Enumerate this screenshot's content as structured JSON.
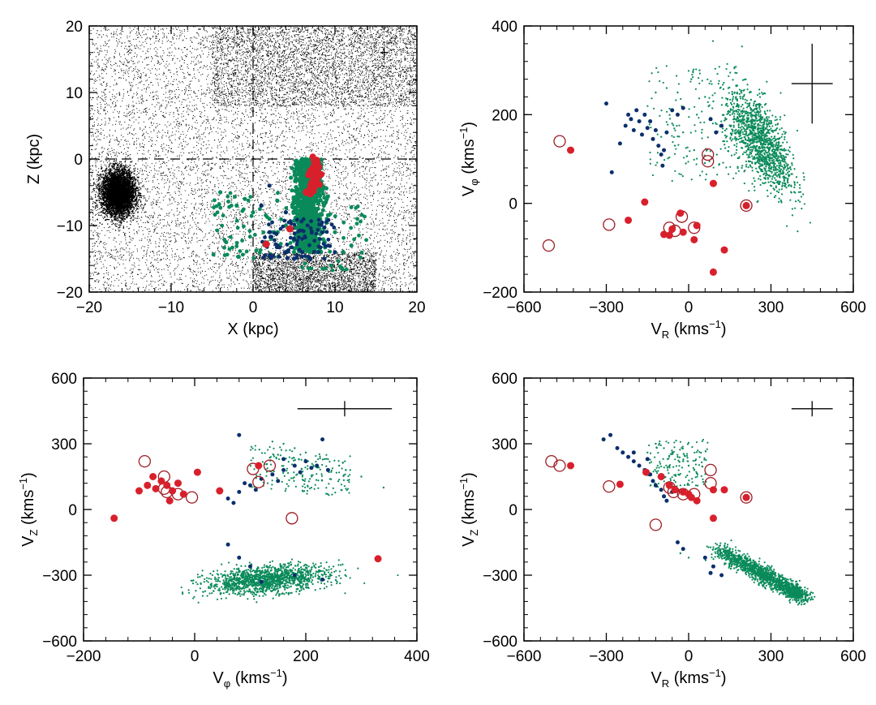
{
  "colors": {
    "background": "#000000",
    "stream_green": "#0a8a5a",
    "blue": "#0b2f6b",
    "red": "#d8202c",
    "open_circle": "#9e1b22"
  },
  "chart_data": [
    {
      "type": "scatter",
      "id": "xz",
      "xlabel": "X (kpc)",
      "ylabel": "Z (kpc)",
      "xlim": [
        -20,
        20
      ],
      "ylim": [
        -20,
        20
      ],
      "xticks": [
        "−20",
        "−10",
        "0",
        "10",
        "20"
      ],
      "yticks": [
        "−20",
        "−10",
        "0",
        "10",
        "20"
      ],
      "reference_lines": {
        "x": 0,
        "y": 0
      },
      "error_cross": {
        "x": 16,
        "y": 16,
        "dx": 0.5,
        "dy": 0.8
      },
      "series": [
        {
          "name": "background",
          "note": "dense field of black points with a compact cluster near (-16.5, -5)"
        },
        {
          "name": "green",
          "points": [
            [
              6,
              0
            ],
            [
              6.5,
              -2
            ],
            [
              7,
              -4
            ],
            [
              7.5,
              -6
            ],
            [
              7,
              -8
            ],
            [
              6.8,
              -10
            ],
            [
              6.5,
              -12
            ],
            [
              7.2,
              -13
            ],
            [
              5,
              -6
            ],
            [
              8,
              -3
            ],
            [
              -4,
              -5
            ],
            [
              -2,
              -7
            ],
            [
              0,
              -8
            ],
            [
              2,
              -9
            ],
            [
              3,
              -11
            ],
            [
              9,
              -9
            ],
            [
              10,
              -11
            ],
            [
              11,
              -14
            ],
            [
              12,
              -13
            ],
            [
              -1,
              -6
            ],
            [
              4,
              -10
            ],
            [
              8,
              -12
            ],
            [
              5,
              -14
            ],
            [
              9,
              -6
            ],
            [
              6,
              -7
            ]
          ]
        },
        {
          "name": "blue",
          "points": [
            [
              2,
              -11
            ],
            [
              3,
              -13
            ],
            [
              4,
              -14
            ],
            [
              5,
              -12
            ],
            [
              6,
              -14
            ],
            [
              8,
              -14
            ],
            [
              10,
              -14
            ],
            [
              4,
              -8
            ],
            [
              1,
              -7
            ],
            [
              2,
              -4
            ],
            [
              5,
              -15
            ],
            [
              7,
              -15
            ]
          ]
        },
        {
          "name": "red_filled",
          "points": [
            [
              7.7,
              -1
            ],
            [
              7.5,
              -2
            ],
            [
              7.2,
              -3.5
            ],
            [
              7.0,
              -4.5
            ],
            [
              6.5,
              -5
            ],
            [
              7.0,
              -5.2
            ],
            [
              4.5,
              -10.5
            ],
            [
              1.6,
              -12.8
            ],
            [
              8,
              -1.2
            ],
            [
              7.5,
              -2.5
            ]
          ]
        }
      ]
    },
    {
      "type": "scatter",
      "id": "vr_vphi",
      "xlabel": "V_R (kms^-1)",
      "ylabel": "V_φ (kms^-1)",
      "xlim": [
        -600,
        600
      ],
      "ylim": [
        -200,
        400
      ],
      "xticks": [
        "−600",
        "−300",
        "0",
        "300",
        "600"
      ],
      "yticks": [
        "−200",
        "0",
        "200",
        "400"
      ],
      "error_cross": {
        "x": 450,
        "y": 270,
        "dx": 75,
        "dy": 90
      },
      "series": [
        {
          "name": "green_cloud",
          "center": [
            260,
            140
          ],
          "note": "dense tilted cloud"
        },
        {
          "name": "blue",
          "points": [
            [
              -300,
              225
            ],
            [
              -280,
              70
            ],
            [
              -250,
              135
            ],
            [
              -230,
              175
            ],
            [
              -220,
              200
            ],
            [
              -210,
              190
            ],
            [
              -200,
              165
            ],
            [
              -190,
              210
            ],
            [
              -180,
              185
            ],
            [
              -170,
              155
            ],
            [
              -160,
              200
            ],
            [
              -150,
              170
            ],
            [
              -140,
              185
            ],
            [
              -130,
              145
            ],
            [
              -120,
              165
            ],
            [
              -110,
              130
            ],
            [
              -100,
              110
            ],
            [
              -95,
              85
            ],
            [
              -90,
              120
            ],
            [
              -80,
              160
            ],
            [
              -60,
              210
            ],
            [
              -40,
              200
            ],
            [
              -20,
              215
            ],
            [
              80,
              190
            ],
            [
              100,
              160
            ],
            [
              120,
              175
            ]
          ]
        },
        {
          "name": "green_sparse",
          "points": [
            [
              -100,
              150
            ],
            [
              -60,
              180
            ],
            [
              -20,
              160
            ],
            [
              -80,
              260
            ],
            [
              -40,
              250
            ],
            [
              10,
              280
            ],
            [
              40,
              300
            ],
            [
              20,
              120
            ],
            [
              -10,
              90
            ],
            [
              60,
              240
            ],
            [
              90,
              230
            ],
            [
              -50,
              130
            ],
            [
              -120,
              250
            ],
            [
              30,
              200
            ]
          ]
        },
        {
          "name": "red_filled",
          "points": [
            [
              -430,
              120
            ],
            [
              -160,
              3
            ],
            [
              -220,
              -38
            ],
            [
              -90,
              -70
            ],
            [
              -70,
              -72
            ],
            [
              -60,
              -58
            ],
            [
              -30,
              -22
            ],
            [
              -20,
              -65
            ],
            [
              20,
              -82
            ],
            [
              30,
              -50
            ],
            [
              90,
              45
            ],
            [
              130,
              -105
            ],
            [
              90,
              -155
            ],
            [
              210,
              -5
            ]
          ]
        },
        {
          "name": "red_open",
          "points": [
            [
              -470,
              140
            ],
            [
              -510,
              -95
            ],
            [
              -290,
              -48
            ],
            [
              -70,
              -55
            ],
            [
              -50,
              -62
            ],
            [
              -25,
              -30
            ],
            [
              20,
              -55
            ],
            [
              70,
              110
            ],
            [
              70,
              95
            ],
            [
              210,
              -5
            ]
          ]
        }
      ]
    },
    {
      "type": "scatter",
      "id": "vphi_vz",
      "xlabel": "V_φ (kms^-1)",
      "ylabel": "V_Z (kms^-1)",
      "xlim": [
        -200,
        400
      ],
      "ylim": [
        -600,
        600
      ],
      "xticks": [
        "−200",
        "0",
        "200",
        "400"
      ],
      "yticks": [
        "−600",
        "−300",
        "0",
        "300",
        "600"
      ],
      "error_cross": {
        "x": 270,
        "y": 460,
        "dx": 85,
        "dy": 35
      },
      "series": [
        {
          "name": "green_cloud",
          "center": [
            130,
            -320
          ],
          "note": "dense horizontal band"
        },
        {
          "name": "blue",
          "points": [
            [
              60,
              50
            ],
            [
              80,
              80
            ],
            [
              100,
              110
            ],
            [
              120,
              140
            ],
            [
              140,
              160
            ],
            [
              160,
              180
            ],
            [
              180,
              200
            ],
            [
              200,
              220
            ],
            [
              220,
              200
            ],
            [
              240,
              180
            ],
            [
              90,
              120
            ],
            [
              70,
              30
            ],
            [
              110,
              90
            ],
            [
              150,
              130
            ],
            [
              190,
              170
            ],
            [
              210,
              190
            ],
            [
              160,
              230
            ],
            [
              60,
              -160
            ],
            [
              80,
              -220
            ],
            [
              100,
              -260
            ],
            [
              120,
              -330
            ],
            [
              180,
              -300
            ],
            [
              230,
              -320
            ],
            [
              80,
              340
            ],
            [
              230,
              320
            ]
          ]
        },
        {
          "name": "green_sparse",
          "points": [
            [
              140,
              310
            ],
            [
              160,
              300
            ],
            [
              180,
              280
            ],
            [
              200,
              260
            ],
            [
              240,
              230
            ],
            [
              260,
              200
            ],
            [
              280,
              180
            ],
            [
              300,
              150
            ],
            [
              340,
              100
            ],
            [
              150,
              250
            ]
          ]
        },
        {
          "name": "red_filled",
          "points": [
            [
              -145,
              -40
            ],
            [
              -100,
              85
            ],
            [
              -85,
              110
            ],
            [
              -75,
              150
            ],
            [
              -70,
              95
            ],
            [
              -60,
              130
            ],
            [
              -50,
              110
            ],
            [
              -45,
              40
            ],
            [
              -40,
              85
            ],
            [
              -30,
              120
            ],
            [
              -20,
              70
            ],
            [
              5,
              170
            ],
            [
              45,
              85
            ],
            [
              115,
              200
            ],
            [
              330,
              -225
            ]
          ]
        },
        {
          "name": "red_open",
          "points": [
            [
              -90,
              220
            ],
            [
              -55,
              150
            ],
            [
              -55,
              95
            ],
            [
              -50,
              80
            ],
            [
              -30,
              70
            ],
            [
              -5,
              55
            ],
            [
              105,
              185
            ],
            [
              115,
              125
            ],
            [
              135,
              200
            ],
            [
              175,
              -40
            ]
          ]
        }
      ]
    },
    {
      "type": "scatter",
      "id": "vr_vz",
      "xlabel": "V_R (kms^-1)",
      "ylabel": "V_Z (kms^-1)",
      "xlim": [
        -600,
        600
      ],
      "ylim": [
        -600,
        600
      ],
      "xticks": [
        "−600",
        "−300",
        "0",
        "300",
        "600"
      ],
      "yticks": [
        "−600",
        "−300",
        "0",
        "300",
        "600"
      ],
      "error_cross": {
        "x": 450,
        "y": 460,
        "dx": 75,
        "dy": 35
      },
      "series": [
        {
          "name": "green_band",
          "from": [
            100,
            -180
          ],
          "to": [
            420,
            -400
          ],
          "note": "diagonal dense band"
        },
        {
          "name": "blue",
          "points": [
            [
              -310,
              320
            ],
            [
              -285,
              340
            ],
            [
              -260,
              280
            ],
            [
              -240,
              260
            ],
            [
              -220,
              240
            ],
            [
              -200,
              220
            ],
            [
              -180,
              200
            ],
            [
              -160,
              180
            ],
            [
              -140,
              160
            ],
            [
              -130,
              130
            ],
            [
              -120,
              110
            ],
            [
              -100,
              90
            ],
            [
              -90,
              60
            ],
            [
              -80,
              40
            ],
            [
              -70,
              120
            ],
            [
              -60,
              80
            ],
            [
              -150,
              230
            ],
            [
              -200,
              260
            ],
            [
              -40,
              -150
            ],
            [
              -20,
              -180
            ],
            [
              60,
              -220
            ],
            [
              90,
              -260
            ],
            [
              120,
              -300
            ],
            [
              80,
              -290
            ]
          ]
        },
        {
          "name": "green_sparse",
          "points": [
            [
              -120,
              300
            ],
            [
              -90,
              280
            ],
            [
              -60,
              260
            ],
            [
              -40,
              240
            ],
            [
              -20,
              220
            ],
            [
              0,
              200
            ],
            [
              20,
              180
            ],
            [
              -30,
              -200
            ],
            [
              0,
              -220
            ],
            [
              -150,
              260
            ]
          ]
        },
        {
          "name": "red_filled",
          "points": [
            [
              -430,
              200
            ],
            [
              -250,
              115
            ],
            [
              -155,
              170
            ],
            [
              -100,
              150
            ],
            [
              -70,
              110
            ],
            [
              -50,
              90
            ],
            [
              -20,
              80
            ],
            [
              0,
              70
            ],
            [
              10,
              55
            ],
            [
              30,
              40
            ],
            [
              90,
              -40
            ],
            [
              90,
              90
            ],
            [
              130,
              90
            ],
            [
              210,
              55
            ]
          ]
        },
        {
          "name": "red_open",
          "points": [
            [
              -500,
              220
            ],
            [
              -470,
              200
            ],
            [
              -290,
              105
            ],
            [
              -120,
              -70
            ],
            [
              -70,
              100
            ],
            [
              -55,
              80
            ],
            [
              -20,
              70
            ],
            [
              20,
              70
            ],
            [
              80,
              180
            ],
            [
              80,
              120
            ],
            [
              210,
              55
            ]
          ]
        }
      ]
    }
  ]
}
